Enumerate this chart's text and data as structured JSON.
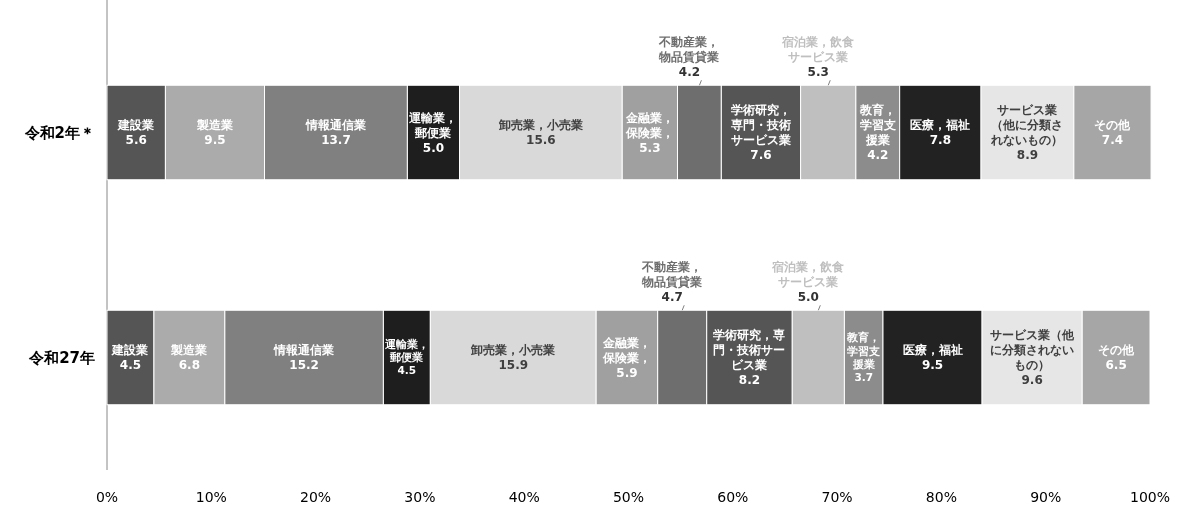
{
  "chart_data": {
    "type": "bar",
    "orientation": "horizontal",
    "stacked": true,
    "categories": [
      "令和2年＊",
      "令和27年"
    ],
    "xlim": [
      0,
      100
    ],
    "xticks": [
      {
        "value": 0,
        "label": "0%"
      },
      {
        "value": 10,
        "label": "10%"
      },
      {
        "value": 20,
        "label": "20%"
      },
      {
        "value": 30,
        "label": "30%"
      },
      {
        "value": 40,
        "label": "40%"
      },
      {
        "value": 50,
        "label": "50%"
      },
      {
        "value": 60,
        "label": "60%"
      },
      {
        "value": 70,
        "label": "70%"
      },
      {
        "value": 80,
        "label": "80%"
      },
      {
        "value": 90,
        "label": "90%"
      },
      {
        "value": 100,
        "label": "100%"
      }
    ],
    "grid": false,
    "series": [
      {
        "name": "建設業",
        "color": "#555555",
        "values": [
          5.6,
          4.5
        ],
        "value_labels": [
          "5.6",
          "4.5"
        ]
      },
      {
        "name": "製造業",
        "color": "#ababab",
        "values": [
          9.5,
          6.8
        ],
        "value_labels": [
          "9.5",
          "6.8"
        ]
      },
      {
        "name": "情報通信業",
        "color": "#808080",
        "values": [
          13.7,
          15.2
        ],
        "value_labels": [
          "13.7",
          "15.2"
        ]
      },
      {
        "name": "運輸業，郵便業",
        "color": "#1e1e1e",
        "values": [
          5.0,
          4.5
        ],
        "value_labels": [
          "5.0",
          "4.5"
        ]
      },
      {
        "name": "卸売業，小売業",
        "color": "#d9d9d9",
        "values": [
          15.6,
          15.9
        ],
        "value_labels": [
          "15.6",
          "15.9"
        ]
      },
      {
        "name": "金融業，保険業，",
        "color": "#a0a0a0",
        "values": [
          5.3,
          5.9
        ],
        "value_labels": [
          "5.3",
          "5.9"
        ]
      },
      {
        "name": "不動産業，物品賃貸業",
        "color": "#6e6e6e",
        "values": [
          4.2,
          4.7
        ],
        "value_labels": [
          "4.2",
          "4.7"
        ]
      },
      {
        "name": "学術研究，専門・技術サービス業",
        "color": "#555555",
        "values": [
          7.6,
          8.2
        ],
        "value_labels": [
          "7.6",
          "8.2"
        ]
      },
      {
        "name": "宿泊業，飲食サービス業",
        "color": "#bfbfbf",
        "values": [
          5.3,
          5.0
        ],
        "value_labels": [
          "5.3",
          "5.0"
        ]
      },
      {
        "name": "教育，学習支援業",
        "color": "#8c8c8c",
        "values": [
          4.2,
          3.7
        ],
        "value_labels": [
          "4.2",
          "3.7"
        ]
      },
      {
        "name": "医療，福祉",
        "color": "#222222",
        "values": [
          7.8,
          9.5
        ],
        "value_labels": [
          "7.8",
          "9.5"
        ]
      },
      {
        "name": "サービス業（他に分類されないもの）",
        "color": "#e6e6e6",
        "values": [
          8.9,
          9.6
        ],
        "value_labels": [
          "8.9",
          "9.6"
        ]
      },
      {
        "name": "その他",
        "color": "#a6a6a6",
        "values": [
          7.4,
          6.5
        ],
        "value_labels": [
          "7.4",
          "6.5"
        ]
      }
    ]
  }
}
